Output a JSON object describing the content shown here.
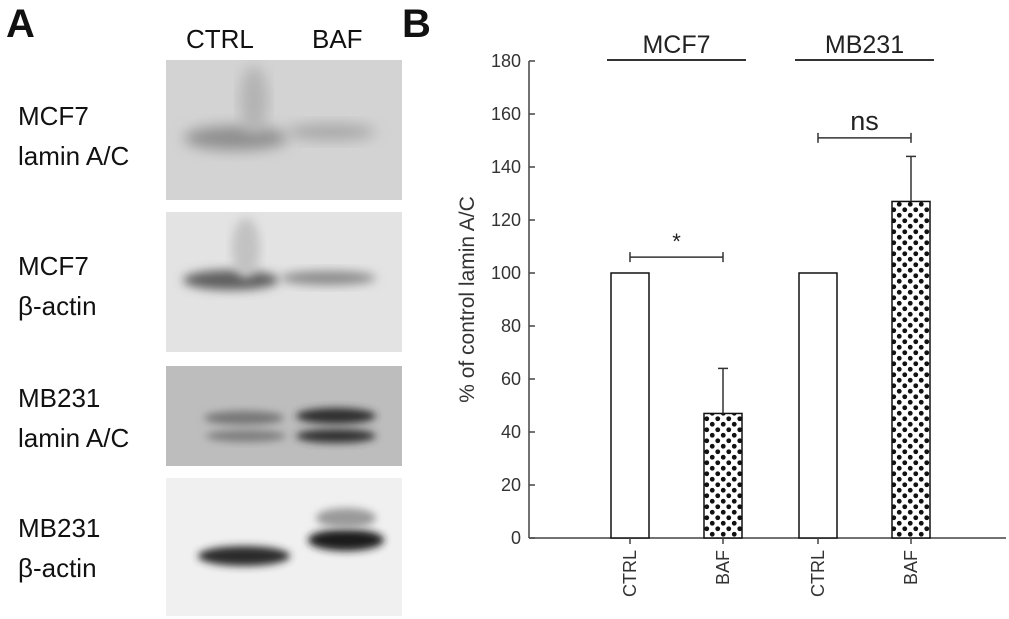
{
  "panel_a": {
    "letter": "A",
    "lane_labels": [
      "CTRL",
      "BAF"
    ],
    "blots": [
      {
        "line1": "MCF7",
        "line2": "lamin A/C"
      },
      {
        "line1": "MCF7",
        "line2": "β-actin"
      },
      {
        "line1": "MB231",
        "line2": "lamin A/C"
      },
      {
        "line1": "MB231",
        "line2": "β-actin"
      }
    ]
  },
  "panel_b": {
    "letter": "B"
  },
  "chart_data": {
    "type": "bar",
    "ylabel": "% of control lamin A/C",
    "ylim": [
      0,
      180
    ],
    "yticks": [
      0,
      20,
      40,
      60,
      80,
      100,
      120,
      140,
      160,
      180
    ],
    "categories": [
      "CTRL",
      "BAF",
      "CTRL",
      "BAF"
    ],
    "values": [
      100,
      47,
      100,
      127
    ],
    "errors": [
      0,
      17,
      0,
      17
    ],
    "patterns": [
      "white",
      "dotted",
      "white",
      "dotted"
    ],
    "groups": [
      {
        "label": "MCF7",
        "members": [
          0,
          1
        ]
      },
      {
        "label": "MB231",
        "members": [
          2,
          3
        ]
      }
    ],
    "significance": [
      {
        "between": [
          0,
          1
        ],
        "label": "*",
        "y": 106
      },
      {
        "between": [
          2,
          3
        ],
        "label": "ns",
        "y": 151
      }
    ],
    "grid": false
  }
}
